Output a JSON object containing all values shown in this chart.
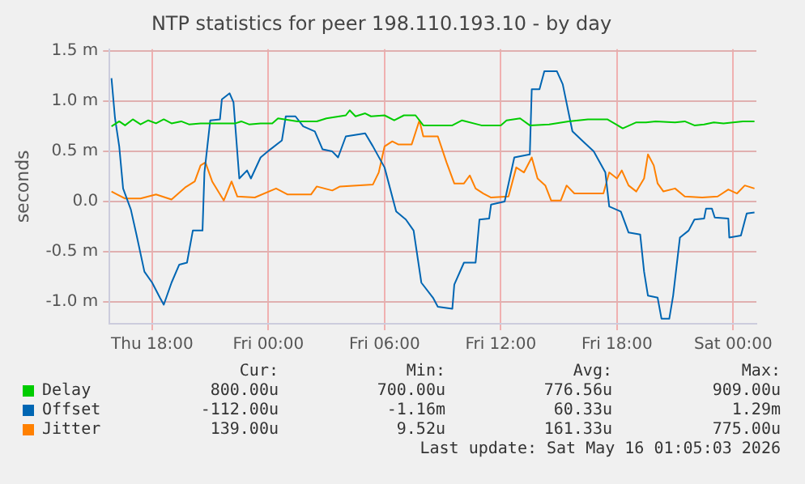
{
  "chart_data": {
    "type": "line",
    "title": "NTP statistics for peer 198.110.193.10 - by day",
    "ylabel": "seconds",
    "xlim": [
      "2026-05-14T15:48",
      "2026-05-16T01:12"
    ],
    "xticks": [
      {
        "value": "2026-05-14T18:00",
        "label": "Thu 18:00"
      },
      {
        "value": "2026-05-15T00:00",
        "label": "Fri 00:00"
      },
      {
        "value": "2026-05-15T06:00",
        "label": "Fri 06:00"
      },
      {
        "value": "2026-05-15T12:00",
        "label": "Fri 12:00"
      },
      {
        "value": "2026-05-15T18:00",
        "label": "Fri 18:00"
      },
      {
        "value": "2026-05-16T00:00",
        "label": "Sat 00:00"
      }
    ],
    "ylim": [
      -1.22,
      1.52
    ],
    "yticks": [
      {
        "value": -1.0,
        "label": "-1.0 m"
      },
      {
        "value": -0.5,
        "label": "-0.5 m"
      },
      {
        "value": 0,
        "label": "0.0"
      },
      {
        "value": 0.5,
        "label": "0.5 m"
      },
      {
        "value": 1.0,
        "label": "1.0 m"
      },
      {
        "value": 1.5,
        "label": "1.5 m"
      }
    ],
    "grid": true,
    "legend": "bottom",
    "marker": "none",
    "line_style": "solid",
    "series": [
      {
        "name": "Delay",
        "color": "#00cc00",
        "x": [
          "2026-05-14T15:54",
          "2026-05-14T16:18",
          "2026-05-14T16:36",
          "2026-05-14T17:00",
          "2026-05-14T17:24",
          "2026-05-14T17:48",
          "2026-05-14T18:12",
          "2026-05-14T18:36",
          "2026-05-14T19:00",
          "2026-05-14T19:30",
          "2026-05-14T19:54",
          "2026-05-14T20:30",
          "2026-05-14T21:30",
          "2026-05-14T22:18",
          "2026-05-14T22:36",
          "2026-05-14T23:00",
          "2026-05-14T23:36",
          "2026-05-15T00:12",
          "2026-05-15T00:30",
          "2026-05-15T01:30",
          "2026-05-15T02:30",
          "2026-05-15T03:00",
          "2026-05-15T04:00",
          "2026-05-15T04:12",
          "2026-05-15T04:30",
          "2026-05-15T05:00",
          "2026-05-15T05:18",
          "2026-05-15T06:00",
          "2026-05-15T06:30",
          "2026-05-15T07:00",
          "2026-05-15T07:36",
          "2026-05-15T08:00",
          "2026-05-15T09:00",
          "2026-05-15T09:30",
          "2026-05-15T10:00",
          "2026-05-15T11:00",
          "2026-05-15T12:00",
          "2026-05-15T12:18",
          "2026-05-15T13:00",
          "2026-05-15T13:30",
          "2026-05-15T14:30",
          "2026-05-15T15:30",
          "2026-05-15T16:30",
          "2026-05-15T17:30",
          "2026-05-15T18:18",
          "2026-05-15T19:00",
          "2026-05-15T19:30",
          "2026-05-15T20:00",
          "2026-05-15T21:00",
          "2026-05-15T21:30",
          "2026-05-15T22:00",
          "2026-05-15T22:30",
          "2026-05-15T23:00",
          "2026-05-15T23:30",
          "2026-05-16T00:30",
          "2026-05-16T01:06"
        ],
        "values": [
          0.75,
          0.8,
          0.76,
          0.82,
          0.77,
          0.81,
          0.78,
          0.82,
          0.78,
          0.8,
          0.77,
          0.78,
          0.78,
          0.78,
          0.8,
          0.77,
          0.78,
          0.78,
          0.83,
          0.8,
          0.8,
          0.83,
          0.86,
          0.91,
          0.85,
          0.88,
          0.85,
          0.86,
          0.81,
          0.86,
          0.86,
          0.76,
          0.76,
          0.76,
          0.81,
          0.76,
          0.76,
          0.81,
          0.83,
          0.76,
          0.77,
          0.8,
          0.82,
          0.82,
          0.73,
          0.79,
          0.79,
          0.8,
          0.79,
          0.8,
          0.76,
          0.77,
          0.79,
          0.78,
          0.8,
          0.8
        ]
      },
      {
        "name": "Offset",
        "color": "#0066b3",
        "x": [
          "2026-05-14T15:54",
          "2026-05-14T16:05",
          "2026-05-14T16:18",
          "2026-05-14T16:30",
          "2026-05-14T16:54",
          "2026-05-14T17:12",
          "2026-05-14T17:36",
          "2026-05-14T18:00",
          "2026-05-14T18:24",
          "2026-05-14T18:36",
          "2026-05-14T19:00",
          "2026-05-14T19:24",
          "2026-05-14T19:48",
          "2026-05-14T20:06",
          "2026-05-14T20:36",
          "2026-05-14T20:42",
          "2026-05-14T21:00",
          "2026-05-14T21:30",
          "2026-05-14T21:36",
          "2026-05-14T22:00",
          "2026-05-14T22:12",
          "2026-05-14T22:30",
          "2026-05-14T22:54",
          "2026-05-14T23:06",
          "2026-05-14T23:36",
          "2026-05-15T00:06",
          "2026-05-15T00:42",
          "2026-05-15T00:54",
          "2026-05-15T01:24",
          "2026-05-15T01:48",
          "2026-05-15T02:24",
          "2026-05-15T02:48",
          "2026-05-15T03:18",
          "2026-05-15T03:36",
          "2026-05-15T04:00",
          "2026-05-15T05:00",
          "2026-05-15T05:24",
          "2026-05-15T06:00",
          "2026-05-15T06:36",
          "2026-05-15T07:06",
          "2026-05-15T07:30",
          "2026-05-15T07:54",
          "2026-05-15T08:30",
          "2026-05-15T08:45",
          "2026-05-15T09:30",
          "2026-05-15T09:36",
          "2026-05-15T10:06",
          "2026-05-15T10:42",
          "2026-05-15T10:54",
          "2026-05-15T11:24",
          "2026-05-15T11:30",
          "2026-05-15T12:12",
          "2026-05-15T12:42",
          "2026-05-15T13:30",
          "2026-05-15T13:36",
          "2026-05-15T14:00",
          "2026-05-15T14:15",
          "2026-05-15T14:54",
          "2026-05-15T15:12",
          "2026-05-15T15:42",
          "2026-05-15T16:15",
          "2026-05-15T16:48",
          "2026-05-15T17:24",
          "2026-05-15T17:36",
          "2026-05-15T18:12",
          "2026-05-15T18:36",
          "2026-05-15T19:12",
          "2026-05-15T19:24",
          "2026-05-15T19:36",
          "2026-05-15T20:06",
          "2026-05-15T20:18",
          "2026-05-15T20:42",
          "2026-05-15T20:54",
          "2026-05-15T21:15",
          "2026-05-15T21:42",
          "2026-05-15T22:00",
          "2026-05-15T22:30",
          "2026-05-15T22:36",
          "2026-05-15T22:54",
          "2026-05-15T23:03",
          "2026-05-15T23:45",
          "2026-05-15T23:48",
          "2026-05-16T00:24",
          "2026-05-16T00:42",
          "2026-05-16T01:06"
        ],
        "values": [
          1.23,
          0.83,
          0.55,
          0.13,
          -0.08,
          -0.34,
          -0.7,
          -0.81,
          -0.96,
          -1.03,
          -0.81,
          -0.63,
          -0.61,
          -0.29,
          -0.29,
          0.29,
          0.81,
          0.82,
          1.02,
          1.08,
          0.99,
          0.23,
          0.31,
          0.23,
          0.44,
          0.52,
          0.61,
          0.85,
          0.85,
          0.75,
          0.7,
          0.52,
          0.5,
          0.44,
          0.65,
          0.68,
          0.55,
          0.34,
          -0.1,
          -0.18,
          -0.29,
          -0.81,
          -0.96,
          -1.05,
          -1.07,
          -0.83,
          -0.61,
          -0.61,
          -0.18,
          -0.17,
          -0.03,
          0,
          0.44,
          0.47,
          1.12,
          1.12,
          1.3,
          1.3,
          1.17,
          0.7,
          0.6,
          0.5,
          0.29,
          -0.05,
          -0.1,
          -0.31,
          -0.33,
          -0.7,
          -0.94,
          -0.96,
          -1.17,
          -1.17,
          -0.94,
          -0.36,
          -0.29,
          -0.18,
          -0.17,
          -0.07,
          -0.07,
          -0.16,
          -0.17,
          -0.36,
          -0.34,
          -0.12,
          -0.11
        ]
      },
      {
        "name": "Jitter",
        "color": "#ff8000",
        "x": [
          "2026-05-14T15:54",
          "2026-05-14T16:12",
          "2026-05-14T16:36",
          "2026-05-14T17:24",
          "2026-05-14T18:12",
          "2026-05-14T19:00",
          "2026-05-14T19:42",
          "2026-05-14T20:12",
          "2026-05-14T20:30",
          "2026-05-14T20:45",
          "2026-05-14T21:06",
          "2026-05-14T21:42",
          "2026-05-14T22:06",
          "2026-05-14T22:24",
          "2026-05-14T23:18",
          "2026-05-15T00:24",
          "2026-05-15T01:00",
          "2026-05-15T02:12",
          "2026-05-15T02:30",
          "2026-05-15T03:18",
          "2026-05-15T03:42",
          "2026-05-15T05:24",
          "2026-05-15T05:42",
          "2026-05-15T06:00",
          "2026-05-15T06:24",
          "2026-05-15T06:42",
          "2026-05-15T07:24",
          "2026-05-15T07:48",
          "2026-05-15T08:00",
          "2026-05-15T08:45",
          "2026-05-15T09:12",
          "2026-05-15T09:36",
          "2026-05-15T10:06",
          "2026-05-15T10:24",
          "2026-05-15T10:42",
          "2026-05-15T11:06",
          "2026-05-15T11:30",
          "2026-05-15T12:24",
          "2026-05-15T12:48",
          "2026-05-15T13:12",
          "2026-05-15T13:36",
          "2026-05-15T13:54",
          "2026-05-15T14:18",
          "2026-05-15T14:36",
          "2026-05-15T15:06",
          "2026-05-15T15:24",
          "2026-05-15T15:48",
          "2026-05-15T16:48",
          "2026-05-15T17:18",
          "2026-05-15T17:36",
          "2026-05-15T18:00",
          "2026-05-15T18:15",
          "2026-05-15T18:36",
          "2026-05-15T19:00",
          "2026-05-15T19:24",
          "2026-05-15T19:36",
          "2026-05-15T19:54",
          "2026-05-15T20:06",
          "2026-05-15T20:24",
          "2026-05-15T21:00",
          "2026-05-15T21:30",
          "2026-05-15T22:24",
          "2026-05-15T23:12",
          "2026-05-15T23:45",
          "2026-05-16T00:12",
          "2026-05-16T00:36",
          "2026-05-16T01:06"
        ],
        "values": [
          0.1,
          0.07,
          0.03,
          0.03,
          0.07,
          0.02,
          0.14,
          0.2,
          0.36,
          0.39,
          0.2,
          0.01,
          0.2,
          0.05,
          0.04,
          0.13,
          0.07,
          0.07,
          0.15,
          0.11,
          0.15,
          0.17,
          0.29,
          0.55,
          0.6,
          0.57,
          0.57,
          0.81,
          0.65,
          0.65,
          0.39,
          0.18,
          0.18,
          0.26,
          0.13,
          0.08,
          0.04,
          0.05,
          0.34,
          0.29,
          0.44,
          0.23,
          0.16,
          0.01,
          0.01,
          0.16,
          0.08,
          0.08,
          0.08,
          0.29,
          0.23,
          0.31,
          0.16,
          0.1,
          0.23,
          0.47,
          0.36,
          0.18,
          0.1,
          0.13,
          0.05,
          0.04,
          0.05,
          0.12,
          0.08,
          0.16,
          0.13
        ]
      }
    ],
    "annotations": [
      "Cur:",
      "Min:",
      "Avg:",
      "Max:",
      "800.00u",
      "700.00u",
      "776.56u",
      "909.00u",
      "-112.00u",
      "-1.16m",
      "60.33u",
      "1.29m",
      "139.00u",
      "9.52u",
      "161.33u",
      "775.00u",
      "Last update: Sat May 16 01:05:03 2026"
    ]
  }
}
